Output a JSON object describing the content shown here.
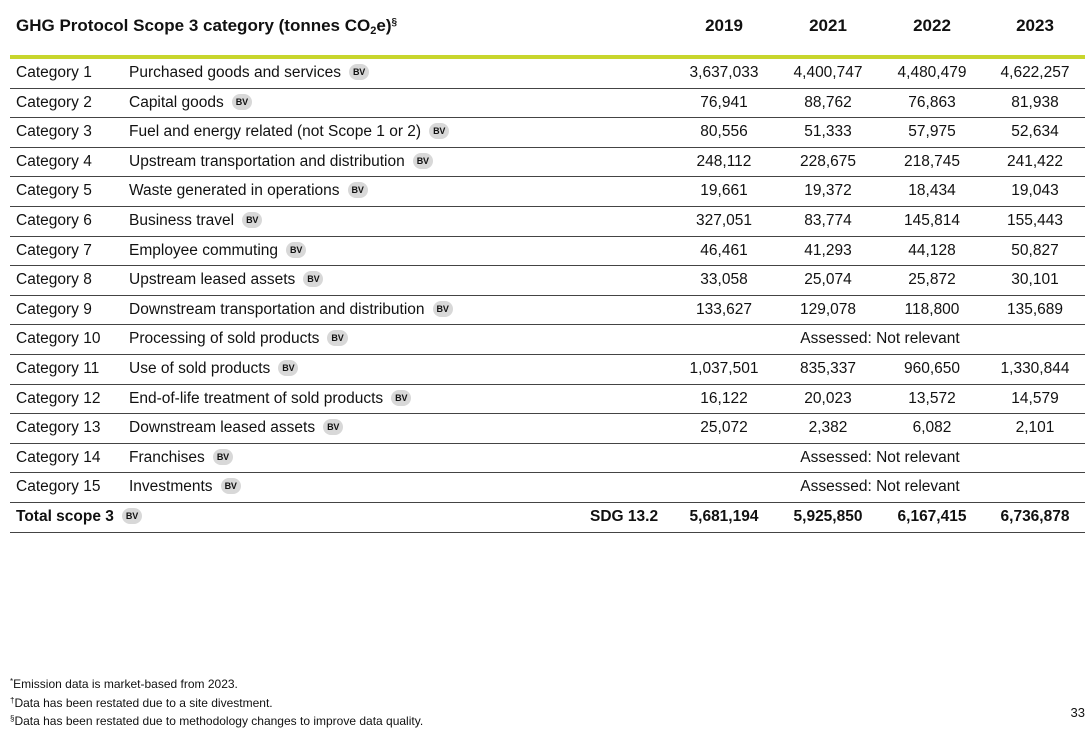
{
  "header": {
    "title_prefix": "GHG Protocol Scope 3 category (tonnes CO",
    "title_sub": "2",
    "title_suffix": "e)",
    "title_mark": "§",
    "years": [
      "2019",
      "2021",
      "2022",
      "2023"
    ]
  },
  "badge_label": "BV",
  "rows": [
    {
      "cat": "Category 1",
      "desc": "Purchased goods and services",
      "v2019": "3,637,033",
      "v2021": "4,400,747",
      "v2022": "4,480,479",
      "v2023": "4,622,257"
    },
    {
      "cat": "Category 2",
      "desc": "Capital goods",
      "v2019": "76,941",
      "v2021": "88,762",
      "v2022": "76,863",
      "v2023": "81,938"
    },
    {
      "cat": "Category 3",
      "desc": "Fuel and energy related (not Scope 1 or 2)",
      "v2019": "80,556",
      "v2021": "51,333",
      "v2022": "57,975",
      "v2023": "52,634"
    },
    {
      "cat": "Category 4",
      "desc": "Upstream transportation and distribution",
      "v2019": "248,112",
      "v2021": "228,675",
      "v2022": "218,745",
      "v2023": "241,422"
    },
    {
      "cat": "Category 5",
      "desc": "Waste generated in operations",
      "v2019": "19,661",
      "v2021": "19,372",
      "v2022": "18,434",
      "v2023": "19,043"
    },
    {
      "cat": "Category 6",
      "desc": "Business travel",
      "v2019": "327,051",
      "v2021": "83,774",
      "v2022": "145,814",
      "v2023": "155,443"
    },
    {
      "cat": "Category 7",
      "desc": "Employee commuting",
      "v2019": "46,461",
      "v2021": "41,293",
      "v2022": "44,128",
      "v2023": "50,827"
    },
    {
      "cat": "Category 8",
      "desc": "Upstream leased assets",
      "v2019": "33,058",
      "v2021": "25,074",
      "v2022": "25,872",
      "v2023": "30,101"
    },
    {
      "cat": "Category 9",
      "desc": "Downstream transportation and distribution",
      "v2019": "133,627",
      "v2021": "129,078",
      "v2022": "118,800",
      "v2023": "135,689"
    },
    {
      "cat": "Category 10",
      "desc": "Processing of sold products",
      "not_relevant": "Assessed: Not relevant"
    },
    {
      "cat": "Category 11",
      "desc": "Use of sold products",
      "v2019": "1,037,501",
      "v2021": "835,337",
      "v2022": "960,650",
      "v2023": "1,330,844"
    },
    {
      "cat": "Category 12",
      "desc": "End-of-life treatment of sold products",
      "v2019": "16,122",
      "v2021": "20,023",
      "v2022": "13,572",
      "v2023": "14,579"
    },
    {
      "cat": "Category 13",
      "desc": "Downstream leased assets",
      "v2019": "25,072",
      "v2021": "2,382",
      "v2022": "6,082",
      "v2023": "2,101"
    },
    {
      "cat": "Category 14",
      "desc": "Franchises",
      "not_relevant": "Assessed: Not relevant"
    },
    {
      "cat": "Category 15",
      "desc": "Investments",
      "not_relevant": "Assessed: Not relevant"
    }
  ],
  "total": {
    "label": "Total scope 3",
    "sdg": "SDG 13.2",
    "v2019": "5,681,194",
    "v2021": "5,925,850",
    "v2022": "6,167,415",
    "v2023": "6,736,878"
  },
  "footnotes": [
    {
      "mark": "*",
      "text": "Emission data is market-based from 2023."
    },
    {
      "mark": "†",
      "text": "Data has been restated due to a site divestment."
    },
    {
      "mark": "§",
      "text": "Data has been restated due to methodology changes to improve data quality."
    }
  ],
  "page_number": "33"
}
